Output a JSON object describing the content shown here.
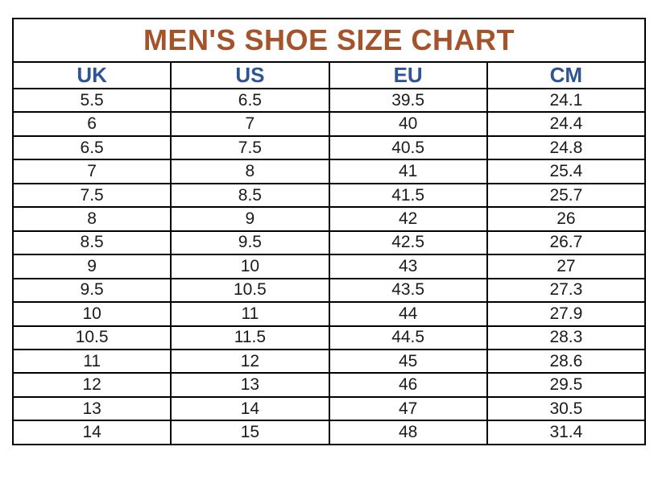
{
  "colors": {
    "title_text": "#A4532B",
    "header_text": "#2F5496",
    "body_text": "#1b1b1b",
    "border": "#000000",
    "background": "#ffffff"
  },
  "chart_data": {
    "type": "table",
    "title": "MEN'S SHOE SIZE CHART",
    "columns": [
      "UK",
      "US",
      "EU",
      "CM"
    ],
    "rows": [
      [
        "5.5",
        "6.5",
        "39.5",
        "24.1"
      ],
      [
        "6",
        "7",
        "40",
        "24.4"
      ],
      [
        "6.5",
        "7.5",
        "40.5",
        "24.8"
      ],
      [
        "7",
        "8",
        "41",
        "25.4"
      ],
      [
        "7.5",
        "8.5",
        "41.5",
        "25.7"
      ],
      [
        "8",
        "9",
        "42",
        "26"
      ],
      [
        "8.5",
        "9.5",
        "42.5",
        "26.7"
      ],
      [
        "9",
        "10",
        "43",
        "27"
      ],
      [
        "9.5",
        "10.5",
        "43.5",
        "27.3"
      ],
      [
        "10",
        "11",
        "44",
        "27.9"
      ],
      [
        "10.5",
        "11.5",
        "44.5",
        "28.3"
      ],
      [
        "11",
        "12",
        "45",
        "28.6"
      ],
      [
        "12",
        "13",
        "46",
        "29.5"
      ],
      [
        "13",
        "14",
        "47",
        "30.5"
      ],
      [
        "14",
        "15",
        "48",
        "31.4"
      ]
    ]
  }
}
